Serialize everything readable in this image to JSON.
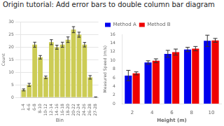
{
  "title": "Origin tutorial: Add error bars to double column bar diagram",
  "chart_data": [
    {
      "type": "bar",
      "categories": [
        "1-4",
        "4-6",
        "6-8",
        "8-10",
        "10-12",
        "12-14",
        "14-16",
        "16-18",
        "18-20",
        "20-22",
        "22-24",
        "24-26",
        "26-28",
        "27-28"
      ],
      "values": [
        3,
        5,
        21,
        16,
        8,
        22,
        20,
        21,
        23,
        27,
        25,
        21,
        8,
        0
      ],
      "errors": [
        0.4,
        0.6,
        1.0,
        0.7,
        0.5,
        1.0,
        0.8,
        1.0,
        1.1,
        1.2,
        1.0,
        0.9,
        0.7,
        0.2
      ],
      "color": "#cccc55",
      "xlabel": "Bin",
      "ylabel": "Count",
      "ylim": [
        0,
        30
      ],
      "yticks": [
        0,
        5,
        10,
        15,
        20,
        25,
        30
      ],
      "grid": true
    },
    {
      "type": "bar",
      "categories": [
        "2",
        "4",
        "6",
        "8",
        "10"
      ],
      "series": [
        {
          "name": "Method A",
          "color": "#0000ee",
          "values": [
            6.5,
            9.5,
            11.5,
            12.5,
            14.5
          ],
          "errors": [
            1.2,
            0.4,
            0.8,
            0.5,
            1.3
          ]
        },
        {
          "name": "Method B",
          "color": "#ee0000",
          "values": [
            7.0,
            9.9,
            11.9,
            12.7,
            14.6
          ],
          "errors": [
            0.35,
            0.45,
            0.7,
            0.5,
            0.45
          ]
        }
      ],
      "xlabel": "Height (m)",
      "ylabel": "Measured Speed (m/s)",
      "ylim": [
        0,
        16
      ],
      "yticks": [
        0,
        2,
        4,
        6,
        8,
        10,
        12,
        14,
        16
      ],
      "grid": false,
      "legend": "upper left"
    }
  ]
}
